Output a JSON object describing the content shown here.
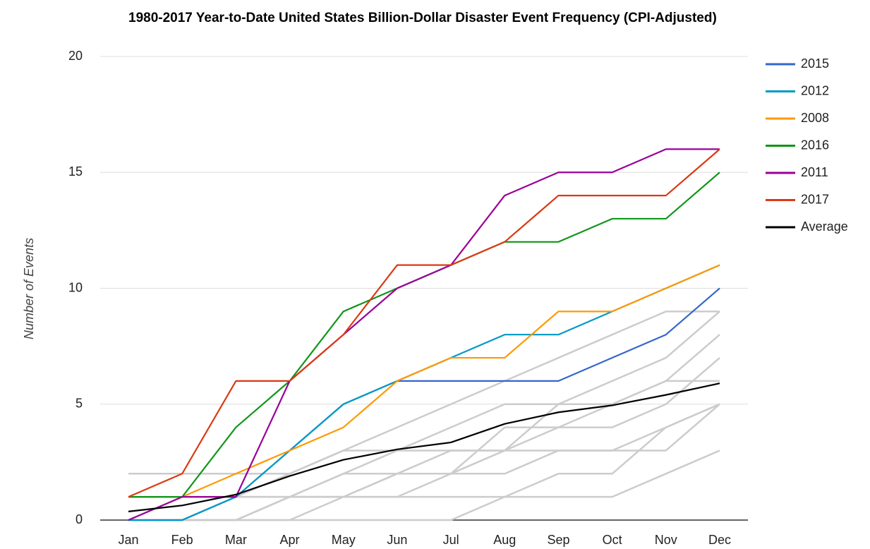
{
  "chart_data": {
    "type": "line",
    "title": "1980-2017 Year-to-Date United States Billion-Dollar Disaster Event Frequency (CPI-Adjusted)",
    "y_label": "Number of Events",
    "categories": [
      "Jan",
      "Feb",
      "Mar",
      "Apr",
      "May",
      "Jun",
      "Jul",
      "Aug",
      "Sep",
      "Oct",
      "Nov",
      "Dec"
    ],
    "ylim": [
      0,
      20
    ],
    "yticks": [
      0,
      5,
      10,
      15,
      20
    ],
    "grid": true,
    "legend": "right",
    "series": [
      {
        "color": "#cccccc",
        "values": [
          1,
          1,
          1,
          1,
          1,
          1,
          1,
          1,
          1,
          1,
          2,
          3
        ]
      },
      {
        "color": "#cccccc",
        "values": [
          0,
          0,
          0,
          0,
          1,
          2,
          3,
          3,
          3,
          3,
          3,
          5
        ]
      },
      {
        "color": "#cccccc",
        "values": [
          0,
          0,
          0,
          1,
          2,
          3,
          4,
          5,
          5,
          6,
          7,
          9
        ]
      },
      {
        "color": "#cccccc",
        "values": [
          0,
          0,
          0,
          1,
          2,
          2,
          2,
          4,
          4,
          5,
          6,
          8
        ]
      },
      {
        "color": "#cccccc",
        "values": [
          0,
          0,
          1,
          2,
          3,
          4,
          5,
          6,
          7,
          8,
          9,
          9
        ]
      },
      {
        "color": "#cccccc",
        "values": [
          0,
          0,
          0,
          0,
          0,
          0,
          0,
          1,
          2,
          2,
          4,
          5
        ]
      },
      {
        "color": "#cccccc",
        "values": [
          2,
          2,
          2,
          2,
          3,
          3,
          3,
          3,
          4,
          4,
          5,
          7
        ]
      },
      {
        "color": "#cccccc",
        "values": [
          0,
          1,
          1,
          1,
          1,
          2,
          2,
          2,
          3,
          3,
          4,
          5
        ]
      },
      {
        "color": "#cccccc",
        "values": [
          0,
          0,
          0,
          1,
          1,
          1,
          2,
          3,
          5,
          5,
          6,
          6
        ]
      },
      {
        "name": "2015",
        "color": "#3366cc",
        "values": [
          0,
          0,
          1,
          3,
          5,
          6,
          6,
          6,
          6,
          7,
          8,
          10
        ]
      },
      {
        "name": "2012",
        "color": "#0099c6",
        "values": [
          0,
          0,
          1,
          3,
          5,
          6,
          7,
          8,
          8,
          9,
          10,
          11
        ]
      },
      {
        "name": "2008",
        "color": "#ff9900",
        "values": [
          1,
          1,
          2,
          3,
          4,
          6,
          7,
          7,
          9,
          9,
          10,
          11
        ]
      },
      {
        "name": "2016",
        "color": "#109618",
        "values": [
          1,
          1,
          4,
          6,
          9,
          10,
          11,
          12,
          12,
          13,
          13,
          15
        ]
      },
      {
        "name": "2011",
        "color": "#990099",
        "values": [
          0,
          1,
          1,
          6,
          8,
          10,
          11,
          14,
          15,
          15,
          16,
          16
        ]
      },
      {
        "name": "2017",
        "color": "#dc3912",
        "values": [
          1,
          2,
          6,
          6,
          8,
          11,
          11,
          12,
          14,
          14,
          14,
          16
        ]
      },
      {
        "name": "Average",
        "color": "#000000",
        "values": [
          0.37,
          0.63,
          1.1,
          1.9,
          2.6,
          3.05,
          3.35,
          4.15,
          4.65,
          4.95,
          5.4,
          5.9
        ]
      }
    ]
  }
}
